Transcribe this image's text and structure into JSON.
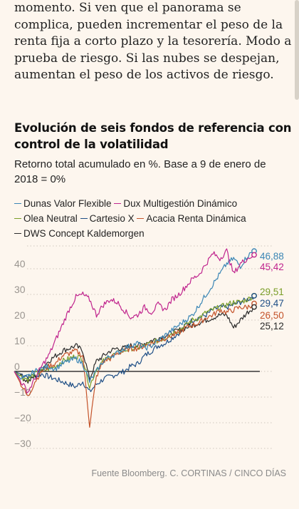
{
  "article_lines": [
    "momento. Si ven que el panorama se",
    "complica, pueden incrementar el peso de la",
    "renta fija a corto plazo y la tesorería. Modo a",
    "prueba de riesgo. Si las nubes se despejan,",
    "aumentan el peso de los activos de riesgo."
  ],
  "source": "Fuente Bloomberg. C. CORTINAS / CINCO DÍAS",
  "colors": {
    "background": "#fdf6ee",
    "dunas": "#3b86b5",
    "dux": "#c0258e",
    "olea": "#7a9e28",
    "cartesio": "#1f4f86",
    "acacia": "#c4532a",
    "dws": "#2b2b2b"
  },
  "chart_data": {
    "type": "line",
    "title": "Evolución de seis fondos de referencia con control de la volatilidad",
    "subtitle": "Retorno total acumulado en %. Base a 9 de enero de 2018 = 0%",
    "ylim": [
      -30,
      50
    ],
    "y_ticks": [
      "40",
      "30",
      "20",
      "10",
      "0",
      "−10",
      "−20",
      "−30"
    ],
    "y_tick_values": [
      40,
      30,
      20,
      10,
      0,
      -10,
      -20,
      -30
    ],
    "grid": "horizontal dotted",
    "legend_placement": "top",
    "series": [
      {
        "name": "Dunas Valor Flexible",
        "color_key": "dunas",
        "final_label": "46,88",
        "values": [
          0,
          -3,
          -2,
          0,
          1,
          2,
          1,
          3,
          4,
          5,
          3,
          -4,
          0,
          4,
          6,
          7,
          9,
          10,
          11,
          9,
          10,
          12,
          14,
          16,
          18,
          20,
          22,
          26,
          30,
          34,
          38,
          42,
          44,
          41,
          45,
          46.88
        ]
      },
      {
        "name": "Dux Multigestión Dinámico",
        "color_key": "dux",
        "final_label": "45,42",
        "values": [
          0,
          -4,
          -8,
          -3,
          2,
          6,
          12,
          18,
          24,
          29,
          30,
          28,
          22,
          26,
          28,
          27,
          24,
          21,
          22,
          25,
          23,
          26,
          24,
          28,
          30,
          33,
          36,
          38,
          42,
          46,
          44,
          47,
          38,
          42,
          44,
          45.42
        ]
      },
      {
        "name": "Olea Neutral",
        "color_key": "olea",
        "final_label": "29,51",
        "values": [
          0,
          -2,
          -3,
          -1,
          0,
          1,
          2,
          4,
          5,
          6,
          5,
          -6,
          1,
          4,
          6,
          7,
          8,
          9,
          9,
          10,
          11,
          12,
          13,
          15,
          16,
          18,
          20,
          21,
          23,
          24,
          25,
          26,
          27,
          27,
          28,
          29.51
        ]
      },
      {
        "name": "Cartesio X",
        "color_key": "cartesio",
        "final_label": "29,47",
        "values": [
          0,
          -1,
          -2,
          -2,
          -1,
          -2,
          -3,
          -4,
          -5,
          -6,
          -4,
          -8,
          -5,
          -3,
          -2,
          -1,
          0,
          2,
          3,
          6,
          8,
          10,
          11,
          13,
          15,
          18,
          20,
          21,
          22,
          24,
          25,
          25,
          26,
          27,
          28,
          29.47
        ]
      },
      {
        "name": "Acacia Renta Dinámica",
        "color_key": "acacia",
        "final_label": "26,50",
        "values": [
          0,
          -5,
          -10,
          -4,
          0,
          2,
          3,
          6,
          7,
          8,
          6,
          -21,
          -2,
          4,
          5,
          7,
          8,
          9,
          9,
          10,
          11,
          12,
          13,
          14,
          15,
          17,
          18,
          19,
          21,
          22,
          24,
          23,
          24,
          25,
          25,
          26.5
        ]
      },
      {
        "name": "DWS Concept Kaldemorgen",
        "color_key": "dws",
        "final_label": "25,12",
        "values": [
          0,
          -2,
          -4,
          -2,
          1,
          4,
          6,
          8,
          9,
          10,
          8,
          -3,
          4,
          6,
          8,
          9,
          9,
          10,
          10,
          11,
          12,
          13,
          14,
          15,
          16,
          17,
          18,
          19,
          20,
          21,
          22,
          22,
          17,
          20,
          23,
          25.12
        ]
      }
    ]
  }
}
